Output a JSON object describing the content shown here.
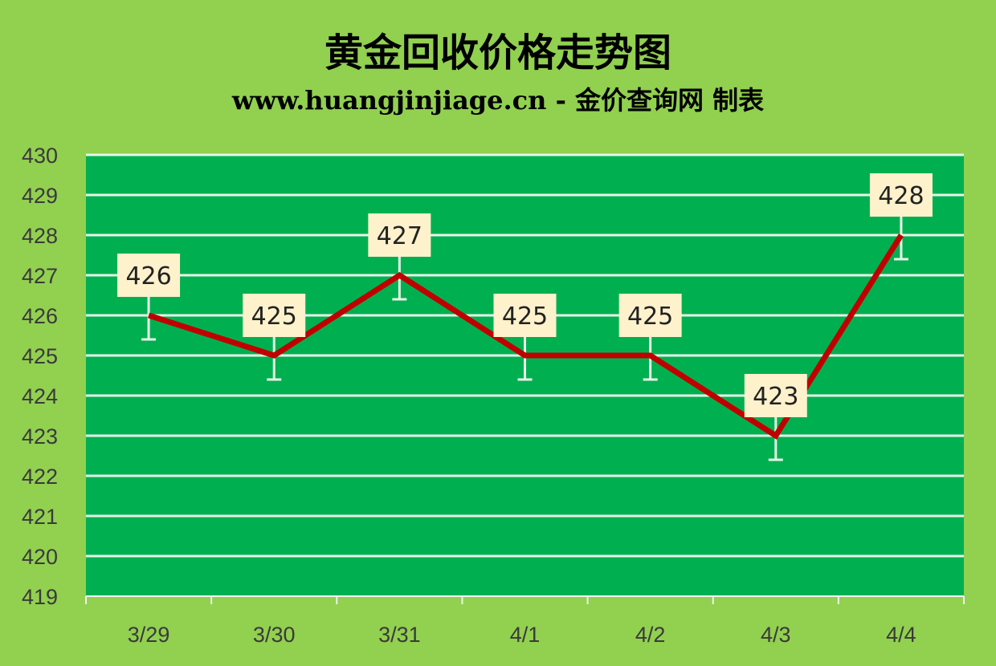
{
  "chart_data": {
    "type": "line",
    "title": "黄金回收价格走势图",
    "subtitle": "www.huangjinjiage.cn - 金价查询网 制表",
    "xlabel": "",
    "ylabel": "",
    "categories": [
      "3/29",
      "3/30",
      "3/31",
      "4/1",
      "4/2",
      "4/3",
      "4/4"
    ],
    "values": [
      426,
      425,
      427,
      425,
      425,
      423,
      428
    ],
    "data_labels": [
      "426",
      "425",
      "427",
      "425",
      "425",
      "423",
      "428"
    ],
    "ylim": [
      419,
      430
    ],
    "yticks": [
      419,
      420,
      421,
      422,
      423,
      424,
      425,
      426,
      427,
      428,
      429,
      430
    ],
    "grid": true,
    "error_bars": true,
    "colors": {
      "background": "#92d050",
      "plot": "#00b050",
      "line": "#c00000",
      "label_box": "#fdf2cc",
      "grid": "#e8f5e9"
    }
  }
}
